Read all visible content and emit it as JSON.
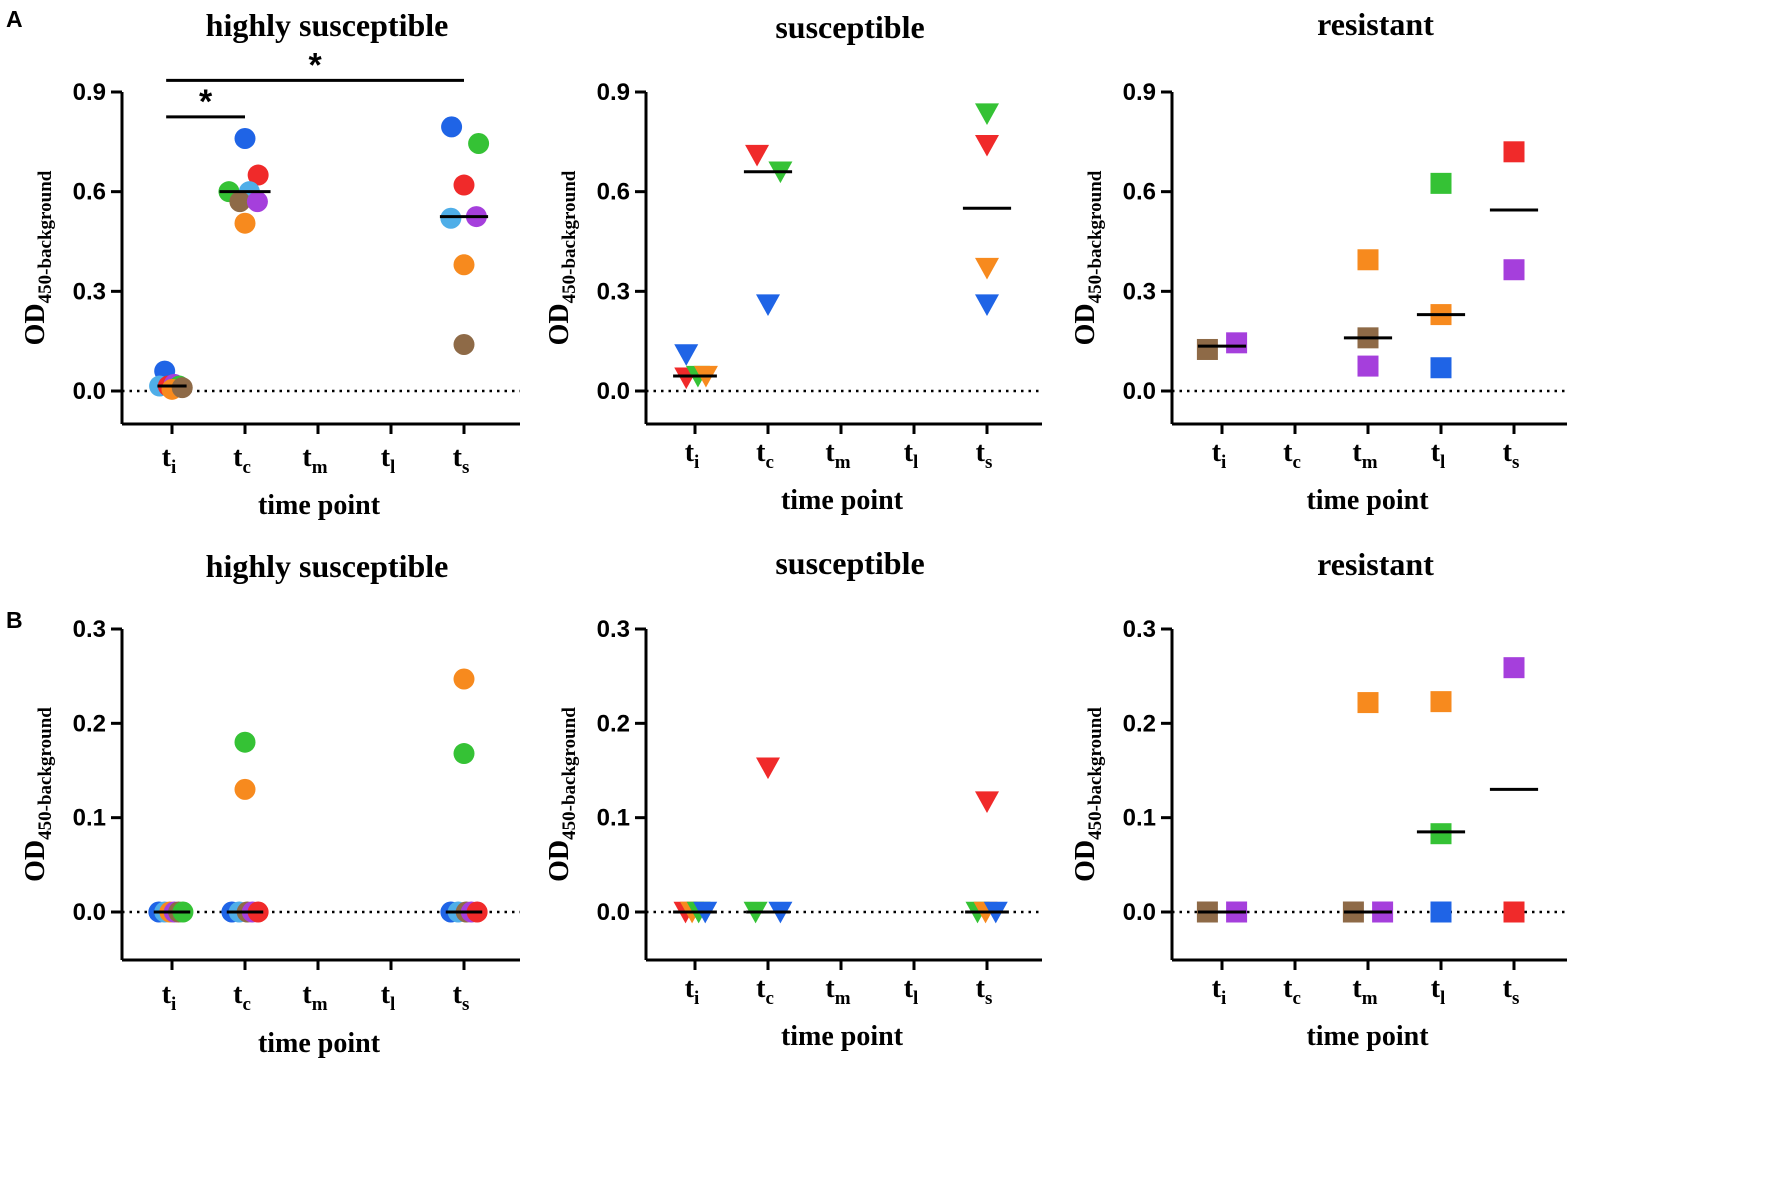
{
  "colors": {
    "blue": "#1f64e6",
    "lightblue": "#4faee8",
    "green": "#35c235",
    "red": "#f02a2a",
    "orange": "#f78a1e",
    "purple": "#a53fdc",
    "brown": "#8e6a47",
    "axis": "#000000"
  },
  "panel_labels": [
    "A",
    "B"
  ],
  "y_label": {
    "main": "OD",
    "sub": "450-background"
  },
  "x_label": "time point",
  "x_categories": [
    {
      "base": "t",
      "sub": "i"
    },
    {
      "base": "t",
      "sub": "c"
    },
    {
      "base": "t",
      "sub": "m"
    },
    {
      "base": "t",
      "sub": "l"
    },
    {
      "base": "t",
      "sub": "s"
    }
  ],
  "chart_data": [
    {
      "type": "scatter",
      "row": "A",
      "col": 0,
      "marker": "circle",
      "title": "highly susceptible",
      "xlabel": "time point",
      "ylabel": "OD450-background",
      "ylim": [
        -0.1,
        0.9
      ],
      "yticks": [
        0.0,
        0.3,
        0.6,
        0.9
      ],
      "ytick_labels": [
        "0.0",
        "0.3",
        "0.6",
        "0.9"
      ],
      "categories": [
        "ti",
        "tc",
        "tm",
        "tl",
        "ts"
      ],
      "points": [
        {
          "x": 0,
          "y": 0.06,
          "dx": -0.1,
          "c": "blue"
        },
        {
          "x": 0,
          "y": 0.015,
          "dx": -0.17,
          "c": "lightblue"
        },
        {
          "x": 0,
          "y": 0.015,
          "dx": -0.05,
          "c": "red"
        },
        {
          "x": 0,
          "y": 0.02,
          "dx": 0.03,
          "c": "purple"
        },
        {
          "x": 0,
          "y": 0.015,
          "dx": 0.1,
          "c": "green"
        },
        {
          "x": 0,
          "y": 0.005,
          "dx": 0.0,
          "c": "orange"
        },
        {
          "x": 0,
          "y": 0.01,
          "dx": 0.14,
          "c": "brown"
        },
        {
          "x": 1,
          "y": 0.76,
          "dx": 0.0,
          "c": "blue"
        },
        {
          "x": 1,
          "y": 0.65,
          "dx": 0.18,
          "c": "red"
        },
        {
          "x": 1,
          "y": 0.6,
          "dx": -0.22,
          "c": "green"
        },
        {
          "x": 1,
          "y": 0.6,
          "dx": 0.06,
          "c": "lightblue"
        },
        {
          "x": 1,
          "y": 0.57,
          "dx": -0.07,
          "c": "brown"
        },
        {
          "x": 1,
          "y": 0.57,
          "dx": 0.17,
          "c": "purple"
        },
        {
          "x": 1,
          "y": 0.505,
          "dx": 0.0,
          "c": "orange"
        },
        {
          "x": 4,
          "y": 0.795,
          "dx": -0.17,
          "c": "blue"
        },
        {
          "x": 4,
          "y": 0.745,
          "dx": 0.2,
          "c": "green"
        },
        {
          "x": 4,
          "y": 0.62,
          "dx": 0.0,
          "c": "red"
        },
        {
          "x": 4,
          "y": 0.52,
          "dx": -0.18,
          "c": "lightblue"
        },
        {
          "x": 4,
          "y": 0.525,
          "dx": 0.17,
          "c": "purple"
        },
        {
          "x": 4,
          "y": 0.38,
          "dx": 0.0,
          "c": "orange"
        },
        {
          "x": 4,
          "y": 0.14,
          "dx": 0.0,
          "c": "brown"
        }
      ],
      "medians": [
        {
          "x": 0,
          "y": 0.015,
          "w": 0.2
        },
        {
          "x": 1,
          "y": 0.6,
          "w": 0.35
        },
        {
          "x": 4,
          "y": 0.525,
          "w": 0.33
        }
      ],
      "significance": [
        {
          "from": 0,
          "to": 1,
          "y": 0.825,
          "label": "*"
        },
        {
          "from": 0,
          "to": 4,
          "y": 0.935,
          "label": "*"
        }
      ]
    },
    {
      "type": "scatter",
      "row": "A",
      "col": 1,
      "marker": "triangle-down",
      "title": "susceptible",
      "xlabel": "time point",
      "ylabel": "OD450-background",
      "ylim": [
        -0.1,
        0.9
      ],
      "yticks": [
        0.0,
        0.3,
        0.6,
        0.9
      ],
      "ytick_labels": [
        "0.0",
        "0.3",
        "0.6",
        "0.9"
      ],
      "categories": [
        "ti",
        "tc",
        "tm",
        "tl",
        "ts"
      ],
      "points": [
        {
          "x": 0,
          "y": 0.11,
          "dx": -0.12,
          "c": "blue"
        },
        {
          "x": 0,
          "y": 0.04,
          "dx": -0.12,
          "c": "red"
        },
        {
          "x": 0,
          "y": 0.045,
          "dx": 0.04,
          "c": "green"
        },
        {
          "x": 0,
          "y": 0.045,
          "dx": 0.15,
          "c": "orange"
        },
        {
          "x": 1,
          "y": 0.71,
          "dx": -0.15,
          "c": "red"
        },
        {
          "x": 1,
          "y": 0.66,
          "dx": 0.17,
          "c": "green"
        },
        {
          "x": 1,
          "y": 0.26,
          "dx": 0.0,
          "c": "blue"
        },
        {
          "x": 4,
          "y": 0.835,
          "dx": 0.0,
          "c": "green"
        },
        {
          "x": 4,
          "y": 0.74,
          "dx": 0.0,
          "c": "red"
        },
        {
          "x": 4,
          "y": 0.37,
          "dx": 0.0,
          "c": "orange"
        },
        {
          "x": 4,
          "y": 0.26,
          "dx": 0.0,
          "c": "blue"
        }
      ],
      "medians": [
        {
          "x": 0,
          "y": 0.045,
          "w": 0.3
        },
        {
          "x": 1,
          "y": 0.66,
          "w": 0.33
        },
        {
          "x": 4,
          "y": 0.55,
          "w": 0.33
        }
      ]
    },
    {
      "type": "scatter",
      "row": "A",
      "col": 2,
      "marker": "square",
      "title": "resistant",
      "xlabel": "time point",
      "ylabel": "OD450-background",
      "ylim": [
        -0.1,
        0.9
      ],
      "yticks": [
        0.0,
        0.3,
        0.6,
        0.9
      ],
      "ytick_labels": [
        "0.0",
        "0.3",
        "0.6",
        "0.9"
      ],
      "categories": [
        "ti",
        "tc",
        "tm",
        "tl",
        "ts"
      ],
      "points": [
        {
          "x": 0,
          "y": 0.125,
          "dx": -0.2,
          "c": "brown"
        },
        {
          "x": 0,
          "y": 0.145,
          "dx": 0.2,
          "c": "purple"
        },
        {
          "x": 2,
          "y": 0.395,
          "dx": 0.0,
          "c": "orange"
        },
        {
          "x": 2,
          "y": 0.16,
          "dx": 0.0,
          "c": "brown"
        },
        {
          "x": 2,
          "y": 0.075,
          "dx": 0.0,
          "c": "purple"
        },
        {
          "x": 3,
          "y": 0.625,
          "dx": 0.0,
          "c": "green"
        },
        {
          "x": 3,
          "y": 0.23,
          "dx": 0.0,
          "c": "orange"
        },
        {
          "x": 3,
          "y": 0.07,
          "dx": 0.0,
          "c": "blue"
        },
        {
          "x": 4,
          "y": 0.72,
          "dx": 0.0,
          "c": "red"
        },
        {
          "x": 4,
          "y": 0.365,
          "dx": 0.0,
          "c": "purple"
        }
      ],
      "medians": [
        {
          "x": 0,
          "y": 0.135,
          "w": 0.33
        },
        {
          "x": 2,
          "y": 0.16,
          "w": 0.33
        },
        {
          "x": 3,
          "y": 0.23,
          "w": 0.33
        },
        {
          "x": 4,
          "y": 0.545,
          "w": 0.33
        }
      ]
    },
    {
      "type": "scatter",
      "row": "B",
      "col": 0,
      "marker": "circle",
      "title": "highly susceptible",
      "xlabel": "time point",
      "ylabel": "OD450-background",
      "ylim": [
        -0.05,
        0.3
      ],
      "yticks": [
        0.0,
        0.1,
        0.2,
        0.3
      ],
      "ytick_labels": [
        "0.0",
        "0.1",
        "0.2",
        "0.3"
      ],
      "categories": [
        "ti",
        "tc",
        "tm",
        "tl",
        "ts"
      ],
      "points": [
        {
          "x": 0,
          "y": 0.0,
          "dx": -0.18,
          "c": "blue"
        },
        {
          "x": 0,
          "y": 0.0,
          "dx": -0.1,
          "c": "lightblue"
        },
        {
          "x": 0,
          "y": 0.0,
          "dx": -0.03,
          "c": "orange"
        },
        {
          "x": 0,
          "y": 0.0,
          "dx": 0.03,
          "c": "purple"
        },
        {
          "x": 0,
          "y": 0.0,
          "dx": 0.09,
          "c": "brown"
        },
        {
          "x": 0,
          "y": 0.0,
          "dx": 0.15,
          "c": "green"
        },
        {
          "x": 1,
          "y": 0.18,
          "dx": 0.0,
          "c": "green"
        },
        {
          "x": 1,
          "y": 0.13,
          "dx": 0.0,
          "c": "orange"
        },
        {
          "x": 1,
          "y": 0.0,
          "dx": -0.18,
          "c": "blue"
        },
        {
          "x": 1,
          "y": 0.0,
          "dx": -0.08,
          "c": "lightblue"
        },
        {
          "x": 1,
          "y": 0.0,
          "dx": 0.03,
          "c": "brown"
        },
        {
          "x": 1,
          "y": 0.0,
          "dx": 0.1,
          "c": "purple"
        },
        {
          "x": 1,
          "y": 0.0,
          "dx": 0.18,
          "c": "red"
        },
        {
          "x": 4,
          "y": 0.247,
          "dx": 0.0,
          "c": "orange"
        },
        {
          "x": 4,
          "y": 0.168,
          "dx": 0.0,
          "c": "green"
        },
        {
          "x": 4,
          "y": 0.0,
          "dx": -0.18,
          "c": "blue"
        },
        {
          "x": 4,
          "y": 0.0,
          "dx": -0.08,
          "c": "lightblue"
        },
        {
          "x": 4,
          "y": 0.0,
          "dx": 0.03,
          "c": "brown"
        },
        {
          "x": 4,
          "y": 0.0,
          "dx": 0.1,
          "c": "purple"
        },
        {
          "x": 4,
          "y": 0.0,
          "dx": 0.18,
          "c": "red"
        }
      ],
      "medians": [
        {
          "x": 0,
          "y": 0.0,
          "w": 0.25
        },
        {
          "x": 1,
          "y": 0.0,
          "w": 0.25
        },
        {
          "x": 4,
          "y": 0.0,
          "w": 0.25
        }
      ]
    },
    {
      "type": "scatter",
      "row": "B",
      "col": 1,
      "marker": "triangle-down",
      "title": "susceptible",
      "xlabel": "time point",
      "ylabel": "OD450-background",
      "ylim": [
        -0.05,
        0.3
      ],
      "yticks": [
        0.0,
        0.1,
        0.2,
        0.3
      ],
      "ytick_labels": [
        "0.0",
        "0.1",
        "0.2",
        "0.3"
      ],
      "categories": [
        "ti",
        "tc",
        "tm",
        "tl",
        "ts"
      ],
      "points": [
        {
          "x": 0,
          "y": 0.0,
          "dx": -0.13,
          "c": "red"
        },
        {
          "x": 0,
          "y": 0.0,
          "dx": -0.04,
          "c": "orange"
        },
        {
          "x": 0,
          "y": 0.0,
          "dx": 0.05,
          "c": "green"
        },
        {
          "x": 0,
          "y": 0.0,
          "dx": 0.14,
          "c": "blue"
        },
        {
          "x": 1,
          "y": 0.153,
          "dx": 0.0,
          "c": "red"
        },
        {
          "x": 1,
          "y": 0.0,
          "dx": -0.17,
          "c": "green"
        },
        {
          "x": 1,
          "y": 0.0,
          "dx": 0.17,
          "c": "blue"
        },
        {
          "x": 4,
          "y": 0.117,
          "dx": 0.0,
          "c": "red"
        },
        {
          "x": 4,
          "y": 0.0,
          "dx": -0.13,
          "c": "green"
        },
        {
          "x": 4,
          "y": 0.0,
          "dx": -0.02,
          "c": "orange"
        },
        {
          "x": 4,
          "y": 0.0,
          "dx": 0.12,
          "c": "blue"
        }
      ],
      "medians": [
        {
          "x": 0,
          "y": 0.0,
          "w": 0.3
        },
        {
          "x": 1,
          "y": 0.0,
          "w": 0.3
        },
        {
          "x": 4,
          "y": 0.0,
          "w": 0.3
        }
      ]
    },
    {
      "type": "scatter",
      "row": "B",
      "col": 2,
      "marker": "square",
      "title": "resistant",
      "xlabel": "time point",
      "ylabel": "OD450-background",
      "ylim": [
        -0.05,
        0.3
      ],
      "yticks": [
        0.0,
        0.1,
        0.2,
        0.3
      ],
      "ytick_labels": [
        "0.0",
        "0.1",
        "0.2",
        "0.3"
      ],
      "categories": [
        "ti",
        "tc",
        "tm",
        "tl",
        "ts"
      ],
      "points": [
        {
          "x": 0,
          "y": 0.0,
          "dx": -0.2,
          "c": "brown"
        },
        {
          "x": 0,
          "y": 0.0,
          "dx": 0.2,
          "c": "purple"
        },
        {
          "x": 2,
          "y": 0.222,
          "dx": 0.0,
          "c": "orange"
        },
        {
          "x": 2,
          "y": 0.0,
          "dx": -0.2,
          "c": "brown"
        },
        {
          "x": 2,
          "y": 0.0,
          "dx": 0.2,
          "c": "purple"
        },
        {
          "x": 3,
          "y": 0.223,
          "dx": 0.0,
          "c": "orange"
        },
        {
          "x": 3,
          "y": 0.083,
          "dx": 0.0,
          "c": "green"
        },
        {
          "x": 3,
          "y": 0.0,
          "dx": 0.0,
          "c": "blue"
        },
        {
          "x": 4,
          "y": 0.259,
          "dx": 0.0,
          "c": "purple"
        },
        {
          "x": 4,
          "y": 0.0,
          "dx": 0.0,
          "c": "red"
        }
      ],
      "medians": [
        {
          "x": 0,
          "y": 0.0,
          "w": 0.33
        },
        {
          "x": 2,
          "y": 0.0,
          "w": 0.33
        },
        {
          "x": 3,
          "y": 0.085,
          "w": 0.33
        },
        {
          "x": 4,
          "y": 0.13,
          "w": 0.33
        }
      ]
    }
  ]
}
